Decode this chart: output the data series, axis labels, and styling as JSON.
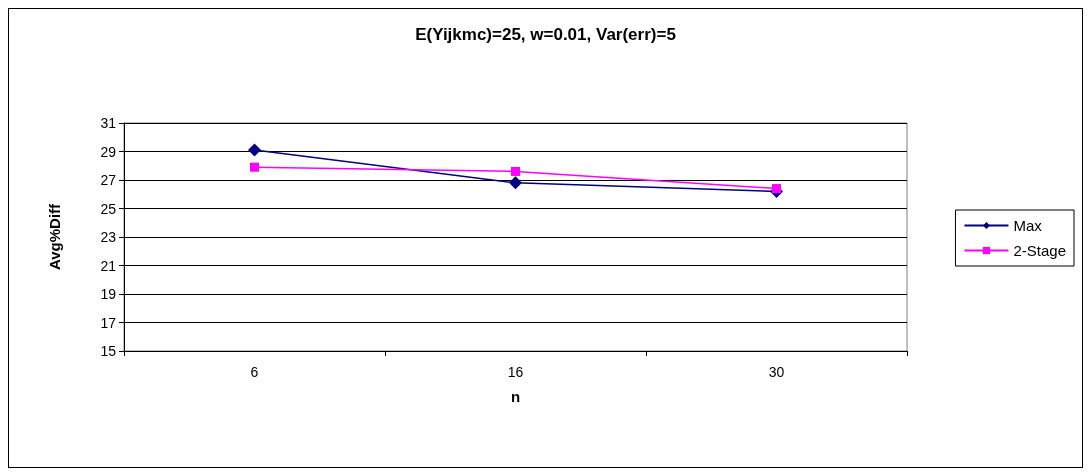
{
  "chart_data": {
    "type": "line",
    "title": "E(Yijkmc)=25, w=0.01, Var(err)=5",
    "xlabel": "n",
    "ylabel": "Avg%Diff",
    "categories": [
      "6",
      "16",
      "30"
    ],
    "series": [
      {
        "name": "Max",
        "color": "#000080",
        "marker": "diamond",
        "values": [
          29.1,
          26.8,
          26.2
        ]
      },
      {
        "name": "2-Stage",
        "color": "#ff00ff",
        "marker": "square",
        "values": [
          27.9,
          27.6,
          26.4
        ]
      }
    ],
    "ylim": [
      15,
      31
    ],
    "yticks": [
      15,
      17,
      19,
      21,
      23,
      25,
      27,
      29,
      31
    ],
    "grid": "y",
    "legend": "right"
  }
}
